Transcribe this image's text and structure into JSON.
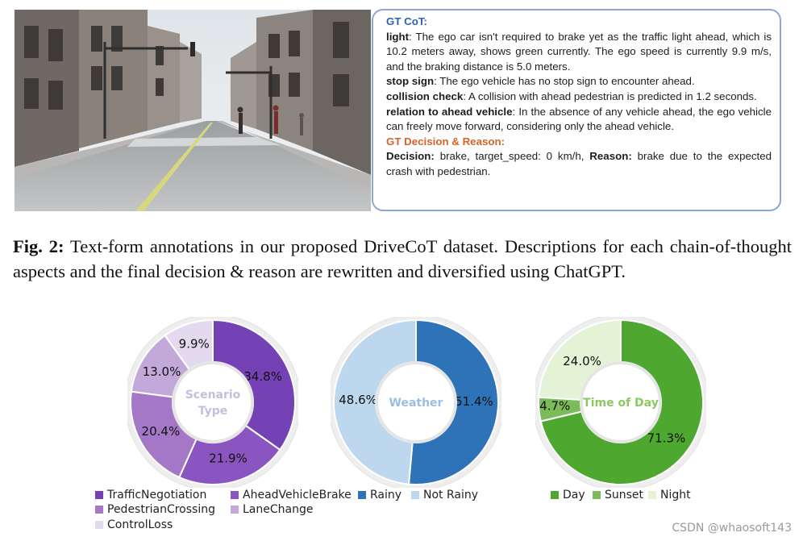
{
  "cot": {
    "heading": "GT CoT:",
    "light_key": "light",
    "light_text": ": The ego car isn't required to brake yet as the traffic light ahead, which is 10.2 meters away, shows green currently. The ego speed is currently 9.9 m/s, and the braking distance is 5.0 meters.",
    "stop_key": "stop sign",
    "stop_text": ": The ego vehicle has no stop sign to encounter ahead.",
    "collision_key": "collision check",
    "collision_text": ": A collision with ahead pedestrian is predicted in 1.2 seconds.",
    "relation_key": "relation to ahead vehicle",
    "relation_text": ": In the absence of any vehicle ahead, the ego vehicle can freely move forward, considering only the ahead vehicle.",
    "decision_heading": "GT Decision & Reason:",
    "decision_key": "Decision:",
    "decision_text": " brake, target_speed: 0 km/h, ",
    "reason_key": "Reason:",
    "reason_text": " brake due to the expected crash with pedestrian."
  },
  "caption": {
    "label": "Fig. 2:",
    "text": " Text-form annotations in our proposed DriveCoT dataset. Descriptions for each chain-of-thought aspects and the final decision & reason are rewritten and diversified using ChatGPT."
  },
  "watermark": "CSDN @whaosoft143",
  "chart_data": [
    {
      "type": "pie",
      "center_label": [
        "Scenario",
        "Type"
      ],
      "center_color": "#c7bde0",
      "categories": [
        "TrafficNegotiation",
        "AheadVehicleBrake",
        "PedestrianCrossing",
        "LaneChange",
        "ControlLoss"
      ],
      "values": [
        34.8,
        21.9,
        20.4,
        13.0,
        9.9
      ],
      "labels": [
        "34.8%",
        "21.9%",
        "20.4%",
        "13.0%",
        "9.9%"
      ],
      "colors": [
        "#7542b6",
        "#8a55c0",
        "#a477c7",
        "#c3a8da",
        "#e3daf0"
      ],
      "legend_placement": "bottom"
    },
    {
      "type": "pie",
      "center_label": [
        "Weather"
      ],
      "center_color": "#9bbde3",
      "categories": [
        "Rainy",
        "Not Rainy"
      ],
      "values": [
        51.4,
        48.6
      ],
      "labels": [
        "51.4%",
        "48.6%"
      ],
      "colors": [
        "#2e73b8",
        "#bdd7ee"
      ],
      "legend_placement": "bottom"
    },
    {
      "type": "pie",
      "center_label": [
        "Time of Day"
      ],
      "center_color": "#8cc964",
      "categories": [
        "Day",
        "Sunset",
        "Night"
      ],
      "values": [
        71.3,
        4.7,
        24.0
      ],
      "labels": [
        "71.3%",
        "4.7%",
        "24.0%"
      ],
      "colors": [
        "#4ea72e",
        "#7cbb59",
        "#e4f2d6"
      ],
      "legend_placement": "bottom"
    }
  ]
}
